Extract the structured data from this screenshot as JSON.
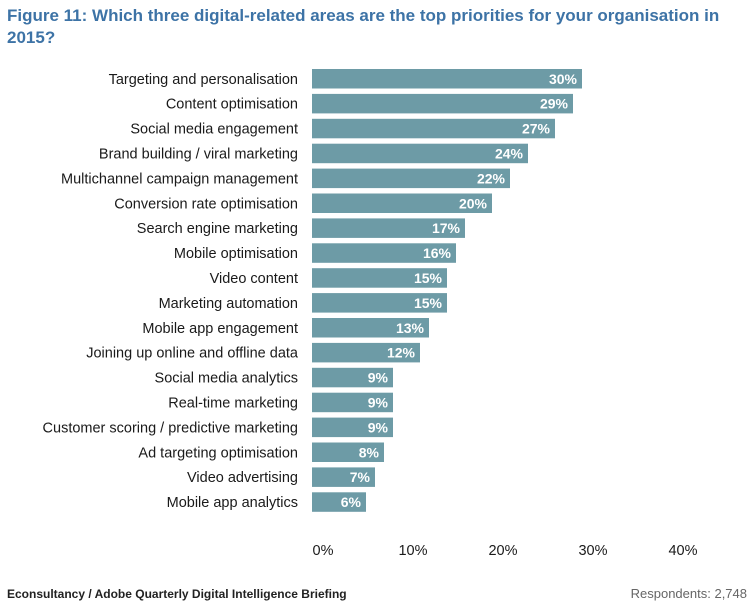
{
  "title": "Figure 11: Which three digital-related areas are the top priorities for your organisation in 2015?",
  "source": "Econsultancy / Adobe Quarterly Digital Intelligence Briefing",
  "respondents": "Respondents: 2,748",
  "colors": {
    "bar": "#6d9ba6",
    "title": "#3d73a6"
  },
  "chart_data": {
    "type": "bar",
    "orientation": "horizontal",
    "categories": [
      "Targeting and personalisation",
      "Content optimisation",
      "Social media engagement",
      "Brand building / viral marketing",
      "Multichannel campaign management",
      "Conversion rate optimisation",
      "Search engine marketing",
      "Mobile optimisation",
      "Video content",
      "Marketing automation",
      "Mobile app engagement",
      "Joining up online and offline data",
      "Social media analytics",
      "Real-time marketing",
      "Customer scoring / predictive marketing",
      "Ad targeting optimisation",
      "Video advertising",
      "Mobile app analytics"
    ],
    "values": [
      30,
      29,
      27,
      24,
      22,
      20,
      17,
      16,
      15,
      15,
      13,
      12,
      9,
      9,
      9,
      8,
      7,
      6
    ],
    "value_labels": [
      "30%",
      "29%",
      "27%",
      "24%",
      "22%",
      "20%",
      "17%",
      "16%",
      "15%",
      "15%",
      "13%",
      "12%",
      "9%",
      "9%",
      "9%",
      "8%",
      "7%",
      "6%"
    ],
    "xlim": [
      0,
      40
    ],
    "xticks": [
      0,
      10,
      20,
      30,
      40
    ],
    "xtick_labels": [
      "0%",
      "10%",
      "20%",
      "30%",
      "40%"
    ],
    "grid": false
  }
}
